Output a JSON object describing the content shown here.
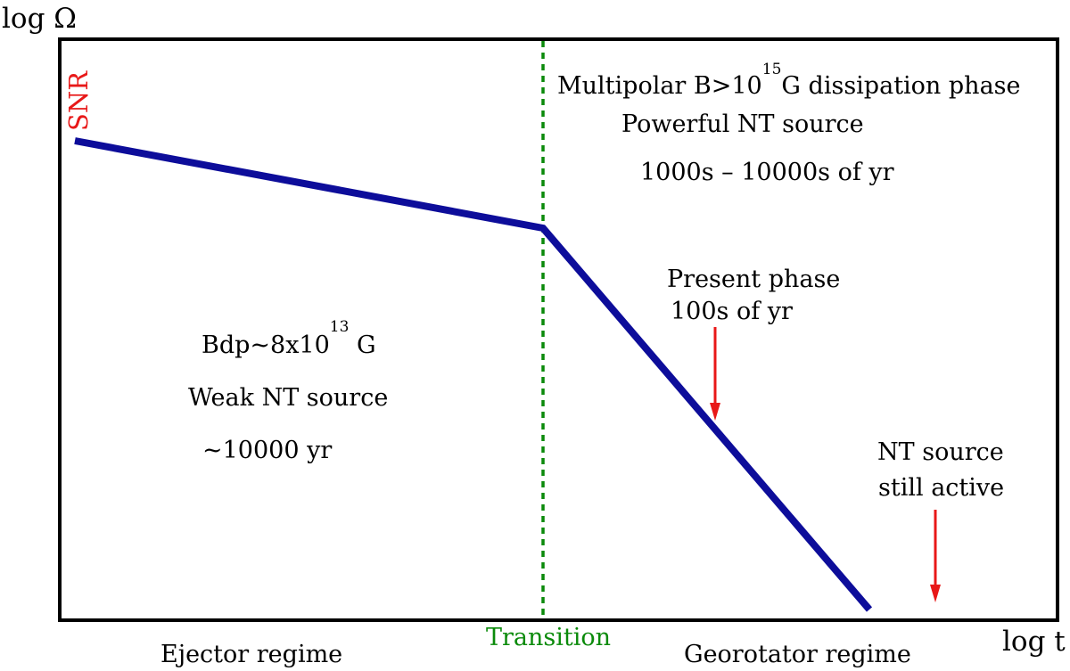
{
  "axes": {
    "ylabel": "log Ω",
    "xlabel": "log t"
  },
  "labels": {
    "snr": "SNR",
    "transition": "Transition",
    "ejector_regime": "Ejector regime",
    "georotator_regime": "Georotator regime",
    "bdp_prefix": "Bdp~8x10",
    "bdp_exponent": "13",
    "bdp_suffix": " G",
    "weak_source": "Weak NT source",
    "weak_age": "~10000 yr",
    "multipolar_prefix": "Multipolar B>10",
    "multipolar_exponent": "15",
    "multipolar_suffix": "G dissipation phase",
    "powerful_source": "Powerful NT source",
    "powerful_age": "1000s – 10000s of yr",
    "present_phase": "Present phase",
    "present_age": "100s of yr",
    "still_active_1": "NT source",
    "still_active_2": "still active"
  },
  "colors": {
    "evolution_track": "#0d0d9a",
    "transition_line": "#0a8a0a",
    "snr_label": "#e81818",
    "arrows": "#e81818",
    "frame": "#000000"
  }
}
